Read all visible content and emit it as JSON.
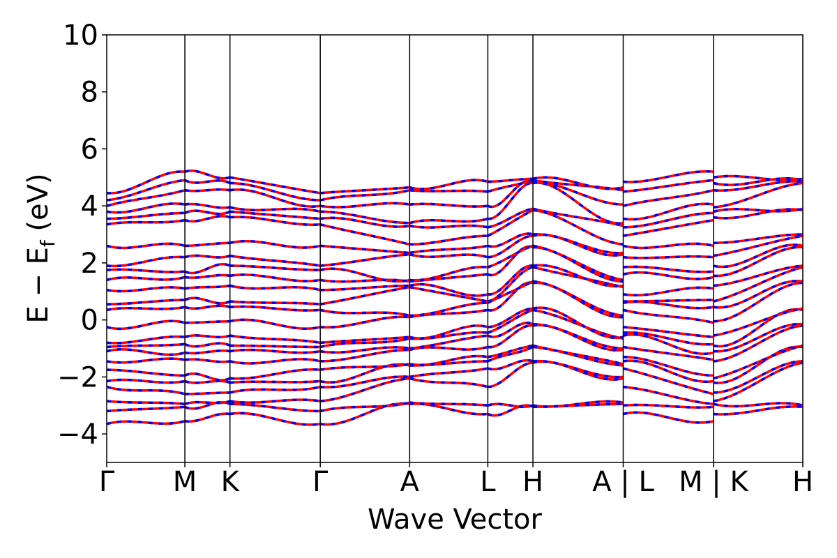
{
  "chart_data": {
    "type": "line",
    "title": "",
    "xlabel": "Wave Vector",
    "ylabel": "E − Eₛ (eV)",
    "ylabel_main": "E  −  E",
    "ylabel_sub": "f",
    "ylabel_unit": " (eV)",
    "ylim": [
      -5,
      10
    ],
    "yticks": [
      -4,
      -2,
      0,
      2,
      4,
      6,
      8,
      10
    ],
    "ytick_labels": [
      "−4",
      "−2",
      "0",
      "2",
      "4",
      "6",
      "8",
      "10"
    ],
    "grid": false,
    "kpath": [
      {
        "label": "Γ",
        "x": 0.0
      },
      {
        "label": "M",
        "x": 1.0
      },
      {
        "label": "K",
        "x": 1.577
      },
      {
        "label": "Γ",
        "x": 2.732
      },
      {
        "label": "A",
        "x": 3.876
      },
      {
        "label": "L",
        "x": 4.876
      },
      {
        "label": "H",
        "x": 5.453
      },
      {
        "label": "A | L",
        "x": 6.608
      },
      {
        "label": "M | K",
        "x": 7.763
      },
      {
        "label": "H",
        "x": 8.906
      }
    ],
    "xlim": [
      0.0,
      8.906
    ],
    "series": [
      {
        "color": "#ff0000",
        "style": "solid",
        "width": 3.5
      },
      {
        "color": "#0000ff",
        "style": "dashed",
        "width": 3.5
      }
    ],
    "bands_segments": [
      {
        "from": 0.0,
        "to": 1.0,
        "start": [
          -3.65,
          -3.2,
          -2.85,
          -2.35,
          -2.15,
          -1.75,
          -1.45,
          -1.1,
          -0.95,
          -0.8,
          -0.25,
          0.35,
          0.55,
          1.05,
          1.4,
          1.75,
          1.9,
          2.6,
          3.35,
          3.55,
          3.8,
          4.0,
          4.2,
          4.45
        ],
        "end": [
          -3.55,
          -3.05,
          -2.95,
          -2.6,
          -2.15,
          -1.95,
          -1.4,
          -1.15,
          -0.85,
          -0.6,
          -0.1,
          0.45,
          0.7,
          1.1,
          1.5,
          1.7,
          2.2,
          2.6,
          3.5,
          3.75,
          4.05,
          4.55,
          4.9,
          5.2
        ]
      },
      {
        "from": 1.0,
        "to": 1.577,
        "start": [
          -3.55,
          -3.05,
          -2.95,
          -2.6,
          -2.15,
          -1.95,
          -1.4,
          -1.15,
          -0.85,
          -0.6,
          -0.1,
          0.45,
          0.7,
          1.1,
          1.5,
          1.7,
          2.2,
          2.6,
          3.5,
          3.75,
          4.05,
          4.55,
          4.9,
          5.2
        ],
        "end": [
          -3.3,
          -2.95,
          -2.85,
          -2.55,
          -2.2,
          -2.05,
          -1.45,
          -1.1,
          -0.9,
          -0.55,
          -0.05,
          0.45,
          0.65,
          1.2,
          1.55,
          1.9,
          2.25,
          2.7,
          3.6,
          3.8,
          3.95,
          4.55,
          4.8,
          5.0
        ]
      },
      {
        "from": 1.577,
        "to": 2.732,
        "start": [
          -3.3,
          -2.95,
          -2.85,
          -2.55,
          -2.2,
          -2.05,
          -1.45,
          -1.1,
          -0.9,
          -0.55,
          -0.05,
          0.45,
          0.65,
          1.2,
          1.55,
          1.9,
          2.25,
          2.7,
          3.6,
          3.8,
          3.95,
          4.55,
          4.8,
          5.0
        ],
        "end": [
          -3.65,
          -3.2,
          -2.85,
          -2.35,
          -2.15,
          -1.75,
          -1.45,
          -1.1,
          -0.95,
          -0.8,
          -0.25,
          0.35,
          0.55,
          1.05,
          1.4,
          1.75,
          1.9,
          2.6,
          3.35,
          3.55,
          3.8,
          4.0,
          4.2,
          4.45
        ]
      },
      {
        "from": 2.732,
        "to": 3.876,
        "start": [
          -3.65,
          -3.2,
          -2.85,
          -2.35,
          -2.15,
          -1.75,
          -1.45,
          -1.1,
          -0.95,
          -0.8,
          -0.25,
          0.35,
          0.55,
          1.05,
          1.4,
          1.75,
          1.9,
          2.6,
          3.35,
          3.55,
          3.8,
          4.0,
          4.2,
          4.45
        ],
        "end": [
          -2.95,
          -2.9,
          -2.05,
          -2.0,
          -1.6,
          -1.55,
          -1.05,
          -1.0,
          -0.65,
          -0.6,
          0.1,
          0.15,
          1.15,
          1.2,
          1.35,
          1.4,
          2.3,
          2.35,
          2.65,
          3.3,
          3.4,
          4.05,
          4.55,
          4.65
        ]
      },
      {
        "from": 3.876,
        "to": 4.876,
        "start": [
          -2.95,
          -2.9,
          -2.05,
          -2.0,
          -1.6,
          -1.55,
          -1.05,
          -1.0,
          -0.65,
          -0.6,
          0.1,
          0.15,
          1.15,
          1.2,
          1.35,
          1.4,
          2.3,
          2.35,
          2.65,
          3.3,
          3.4,
          4.05,
          4.55,
          4.65
        ],
        "end": [
          -3.3,
          -3.0,
          -2.35,
          -1.7,
          -1.45,
          -1.3,
          -0.95,
          -0.55,
          -0.45,
          -0.25,
          0.35,
          0.6,
          0.65,
          0.9,
          1.6,
          1.85,
          2.2,
          2.6,
          2.95,
          3.25,
          3.55,
          4.0,
          4.5,
          4.85
        ]
      },
      {
        "from": 4.876,
        "to": 5.453,
        "start": [
          -3.3,
          -3.0,
          -2.35,
          -1.7,
          -1.45,
          -1.3,
          -0.95,
          -0.55,
          -0.45,
          -0.25,
          0.35,
          0.6,
          0.65,
          0.9,
          1.6,
          1.85,
          2.2,
          2.6,
          2.95,
          3.25,
          3.55,
          4.0,
          4.5,
          4.85
        ],
        "end": [
          -3.05,
          -3.0,
          -1.5,
          -1.45,
          -0.95,
          -0.9,
          -0.2,
          -0.15,
          0.35,
          0.4,
          1.3,
          1.35,
          1.85,
          1.9,
          2.55,
          2.6,
          2.95,
          3.0,
          3.85,
          3.9,
          4.8,
          4.85,
          4.9,
          4.95
        ]
      },
      {
        "from": 5.453,
        "to": 6.608,
        "start": [
          -3.05,
          -3.0,
          -1.5,
          -1.45,
          -0.95,
          -0.9,
          -0.2,
          -0.15,
          0.35,
          0.4,
          1.3,
          1.35,
          1.85,
          1.9,
          2.55,
          2.6,
          2.95,
          3.0,
          3.85,
          3.9,
          4.8,
          4.85,
          4.9,
          4.95
        ],
        "end": [
          -2.95,
          -2.9,
          -2.05,
          -2.0,
          -1.6,
          -1.55,
          -1.05,
          -1.0,
          -0.65,
          -0.6,
          0.1,
          0.15,
          1.15,
          1.2,
          1.35,
          1.4,
          2.3,
          2.35,
          2.65,
          3.3,
          3.4,
          4.05,
          4.55,
          4.65
        ]
      },
      {
        "from": 6.608,
        "to": 7.763,
        "start": [
          -3.3,
          -3.0,
          -2.35,
          -1.7,
          -1.45,
          -1.3,
          -0.95,
          -0.55,
          -0.45,
          -0.25,
          0.35,
          0.6,
          0.65,
          0.9,
          1.6,
          1.85,
          2.2,
          2.6,
          2.95,
          3.25,
          3.55,
          4.0,
          4.5,
          4.85
        ],
        "end": [
          -3.55,
          -3.05,
          -2.95,
          -2.6,
          -2.15,
          -1.95,
          -1.4,
          -1.15,
          -0.85,
          -0.6,
          -0.1,
          0.45,
          0.7,
          1.1,
          1.5,
          1.7,
          2.2,
          2.6,
          3.5,
          3.75,
          4.05,
          4.55,
          4.9,
          5.2
        ]
      },
      {
        "from": 7.763,
        "to": 8.906,
        "start": [
          -3.3,
          -2.95,
          -2.85,
          -2.55,
          -2.2,
          -2.05,
          -1.45,
          -1.1,
          -0.9,
          -0.55,
          -0.05,
          0.45,
          0.65,
          1.2,
          1.55,
          1.9,
          2.25,
          2.7,
          3.6,
          3.8,
          3.95,
          4.55,
          4.8,
          5.0
        ],
        "end": [
          -3.05,
          -3.0,
          -1.5,
          -1.45,
          -0.95,
          -0.9,
          -0.2,
          -0.15,
          0.35,
          0.4,
          1.3,
          1.35,
          1.85,
          1.9,
          2.55,
          2.6,
          2.95,
          3.0,
          3.85,
          3.9,
          4.8,
          4.85,
          4.9,
          4.95
        ]
      }
    ]
  }
}
